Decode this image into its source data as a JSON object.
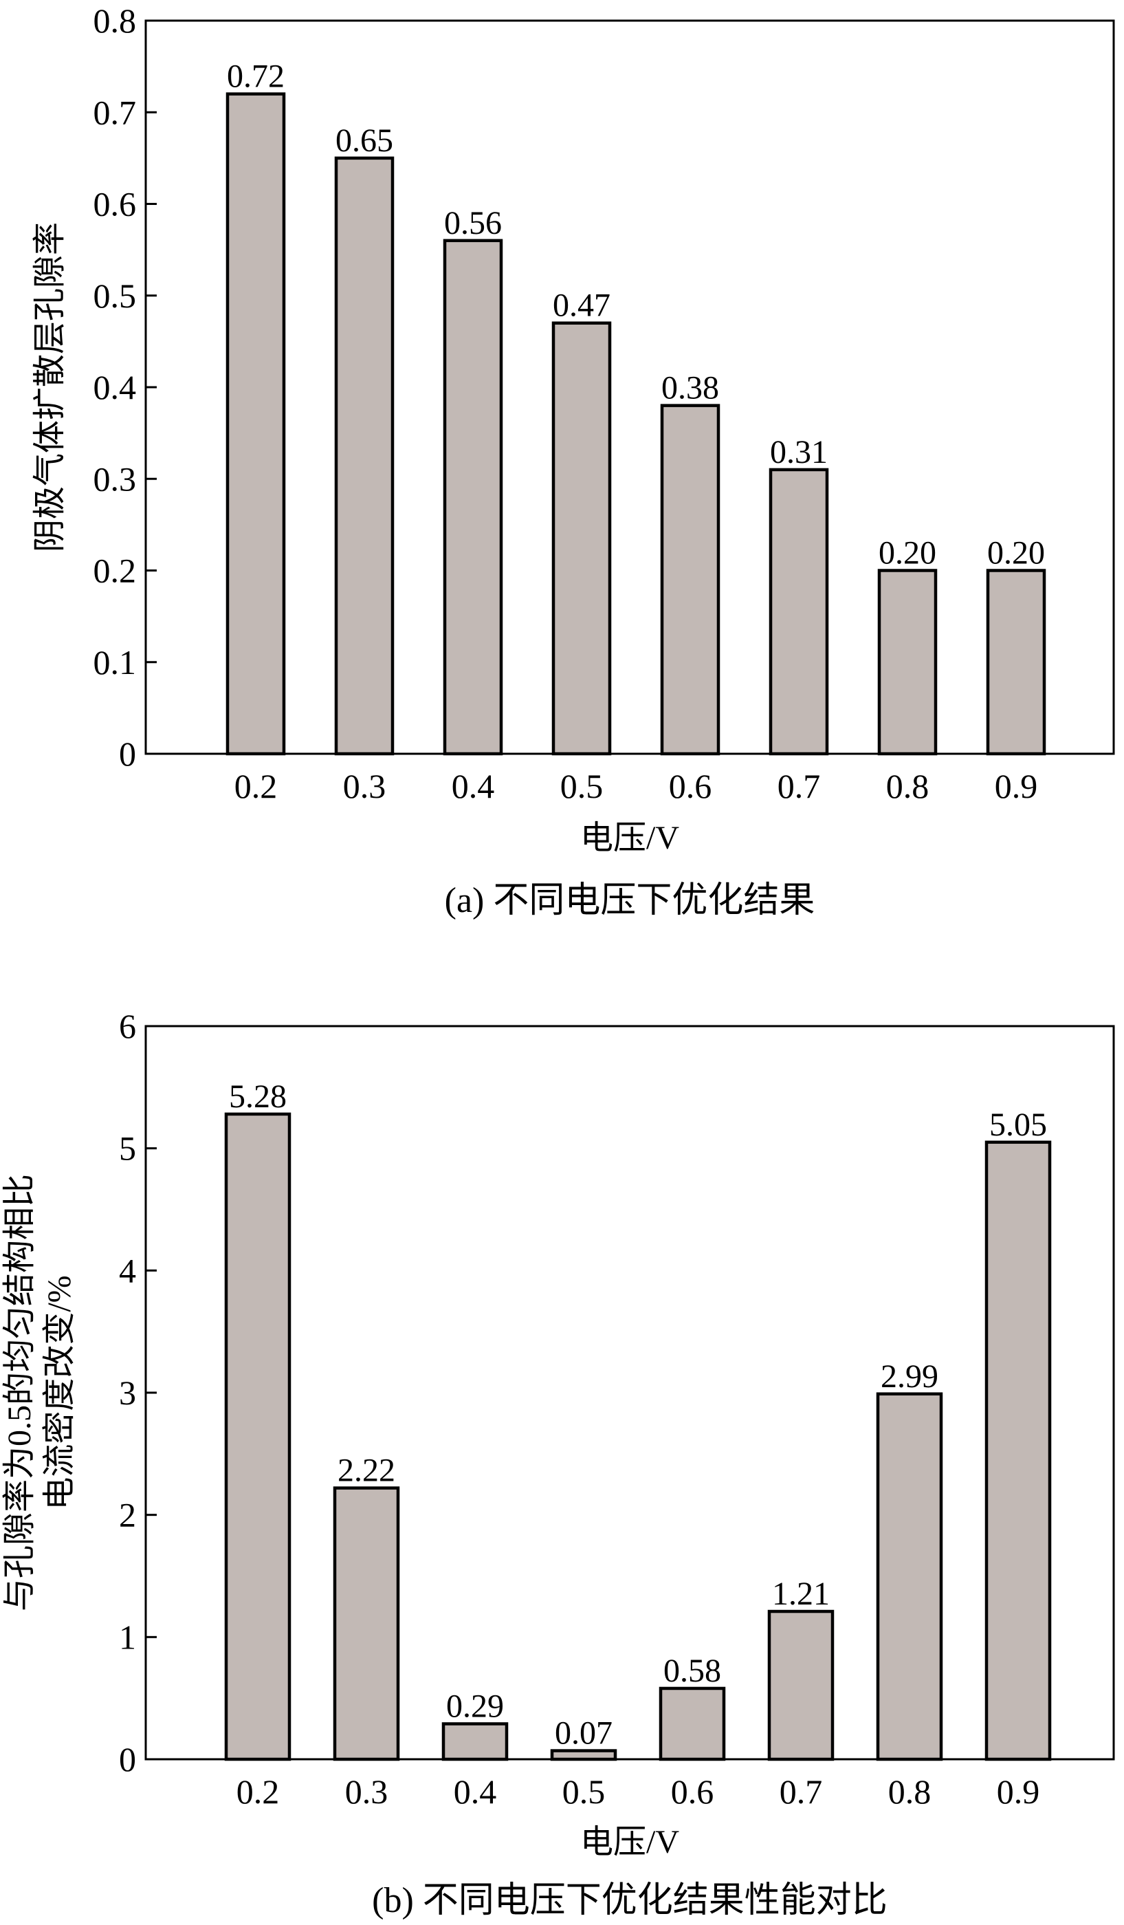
{
  "chart_data": [
    {
      "type": "bar",
      "categories": [
        "0.2",
        "0.3",
        "0.4",
        "0.5",
        "0.6",
        "0.7",
        "0.8",
        "0.9"
      ],
      "values": [
        0.72,
        0.65,
        0.56,
        0.47,
        0.38,
        0.31,
        0.2,
        0.2
      ],
      "value_labels": [
        "0.72",
        "0.65",
        "0.56",
        "0.47",
        "0.38",
        "0.31",
        "0.20",
        "0.20"
      ],
      "yticks": [
        "0",
        "0.1",
        "0.2",
        "0.3",
        "0.4",
        "0.5",
        "0.6",
        "0.7",
        "0.8"
      ],
      "ylim": [
        0,
        0.8
      ],
      "xlabel": "电压/V",
      "ylabel": [
        "阴极气体扩散层孔隙率"
      ],
      "caption": "(a) 不同电压下优化结果",
      "bar_color": "#c2b9b5",
      "grid": false
    },
    {
      "type": "bar",
      "categories": [
        "0.2",
        "0.3",
        "0.4",
        "0.5",
        "0.6",
        "0.7",
        "0.8",
        "0.9"
      ],
      "values": [
        5.28,
        2.22,
        0.29,
        0.07,
        0.58,
        1.21,
        2.99,
        5.05
      ],
      "value_labels": [
        "5.28",
        "2.22",
        "0.29",
        "0.07",
        "0.58",
        "1.21",
        "2.99",
        "5.05"
      ],
      "yticks": [
        "0",
        "1",
        "2",
        "3",
        "4",
        "5",
        "6"
      ],
      "ylim": [
        0,
        6
      ],
      "xlabel": "电压/V",
      "ylabel": [
        "与孔隙率为0.5的均匀结构相比",
        "电流密度改变/%"
      ],
      "caption": "(b) 不同电压下优化结果性能对比",
      "bar_color": "#c2b9b5",
      "grid": false
    }
  ]
}
